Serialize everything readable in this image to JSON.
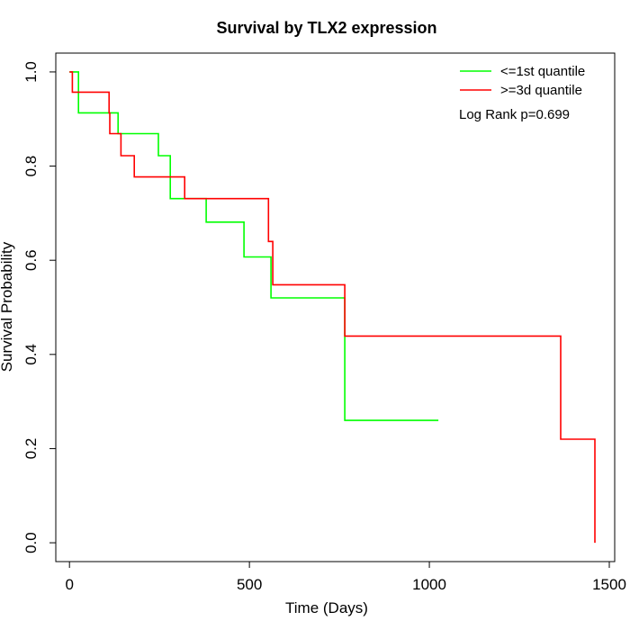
{
  "chart_data": {
    "type": "line",
    "title": "Survival by TLX2 expression",
    "xlabel": "Time (Days)",
    "ylabel": "Survival Probability",
    "xlim": [
      -38,
      1515
    ],
    "ylim": [
      -0.04,
      1.04
    ],
    "x_ticks": [
      0,
      500,
      1000,
      1500
    ],
    "y_ticks": [
      0.0,
      0.2,
      0.4,
      0.6,
      0.8,
      1.0
    ],
    "x_tick_labels": [
      "0",
      "500",
      "1000",
      "1500"
    ],
    "y_tick_labels": [
      "0.0",
      "0.2",
      "0.4",
      "0.6",
      "0.8",
      "1.0"
    ],
    "grid": false,
    "legend_position": "top-right",
    "annotation": "Log Rank p=0.699",
    "series": [
      {
        "name": "<=1st quantile",
        "color": "#00ff00",
        "steps": [
          [
            0,
            1.0
          ],
          [
            25,
            0.913
          ],
          [
            135,
            0.869
          ],
          [
            247,
            0.822
          ],
          [
            280,
            0.731
          ],
          [
            380,
            0.681
          ],
          [
            485,
            0.607
          ],
          [
            560,
            0.52
          ],
          [
            765,
            0.26
          ],
          [
            1025,
            0.26
          ]
        ]
      },
      {
        "name": ">=3d quantile",
        "color": "#ff0000",
        "steps": [
          [
            0,
            1.0
          ],
          [
            8,
            0.957
          ],
          [
            110,
            0.913
          ],
          [
            112,
            0.869
          ],
          [
            143,
            0.822
          ],
          [
            180,
            0.777
          ],
          [
            320,
            0.731
          ],
          [
            553,
            0.64
          ],
          [
            565,
            0.548
          ],
          [
            765,
            0.439
          ],
          [
            1365,
            0.22
          ],
          [
            1460,
            0.0
          ]
        ]
      }
    ]
  }
}
